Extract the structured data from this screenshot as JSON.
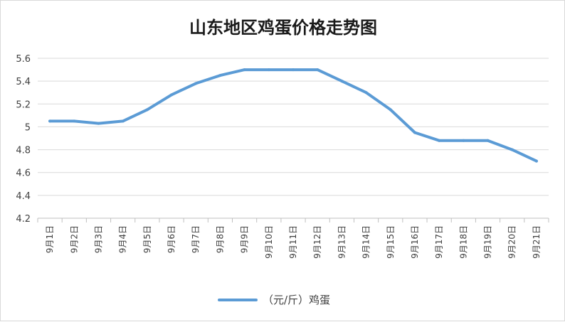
{
  "chart_data": {
    "type": "line",
    "title": "山东地区鸡蛋价格走势图",
    "xlabel": "",
    "ylabel": "",
    "categories": [
      "9月1日",
      "9月2日",
      "9月3日",
      "9月4日",
      "9月5日",
      "9月6日",
      "9月7日",
      "9月8日",
      "9月9日",
      "9月10日",
      "9月11日",
      "9月12日",
      "9月13日",
      "9月14日",
      "9月15日",
      "9月16日",
      "9月17日",
      "9月18日",
      "9月19日",
      "9月20日",
      "9月21日"
    ],
    "series": [
      {
        "name": "（元/斤）鸡蛋",
        "color": "#5b9bd5",
        "values": [
          5.05,
          5.05,
          5.03,
          5.05,
          5.15,
          5.28,
          5.38,
          5.45,
          5.5,
          5.5,
          5.5,
          5.5,
          5.4,
          5.3,
          5.15,
          4.95,
          4.88,
          4.88,
          4.88,
          4.8,
          4.7
        ]
      }
    ],
    "ylim": [
      4.2,
      5.6
    ],
    "yticks": [
      "4.2",
      "4.4",
      "4.6",
      "4.8",
      "5",
      "5.2",
      "5.4",
      "5.6"
    ],
    "grid": true,
    "legend_position": "bottom"
  }
}
